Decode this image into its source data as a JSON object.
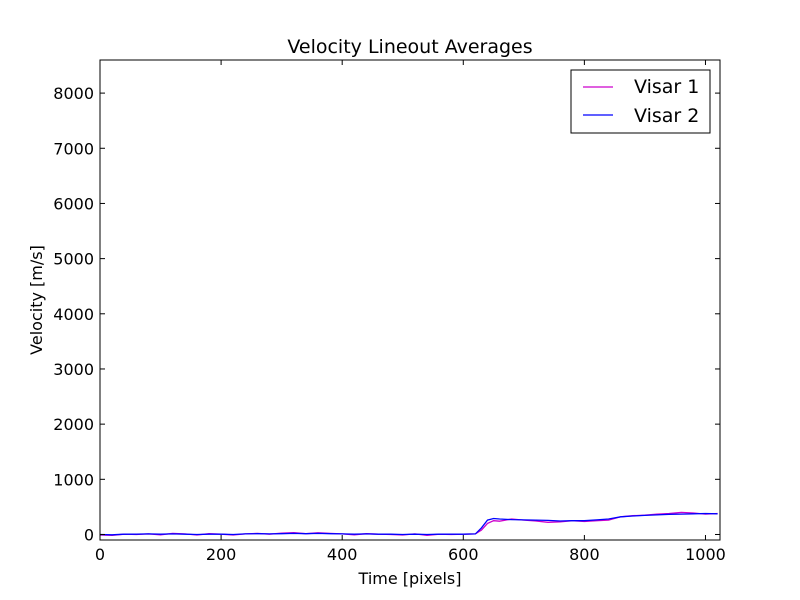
{
  "chart_data": {
    "type": "line",
    "title": "Velocity Lineout Averages",
    "xlabel": "Time [pixels]",
    "ylabel": "Velocity [m/s]",
    "xlim": [
      0,
      1024
    ],
    "ylim": [
      -100,
      8600
    ],
    "xticks": [
      0,
      200,
      400,
      600,
      800,
      1000
    ],
    "yticks": [
      0,
      1000,
      2000,
      3000,
      4000,
      5000,
      6000,
      7000,
      8000
    ],
    "grid": false,
    "legend_position": "top-right",
    "series": [
      {
        "name": "Visar 1",
        "color": "#cc00cc",
        "x": [
          0,
          20,
          40,
          60,
          80,
          100,
          120,
          140,
          160,
          180,
          200,
          220,
          240,
          260,
          280,
          300,
          320,
          340,
          360,
          380,
          400,
          420,
          440,
          460,
          480,
          500,
          520,
          540,
          560,
          580,
          600,
          620,
          630,
          640,
          650,
          660,
          680,
          700,
          720,
          740,
          760,
          780,
          800,
          820,
          840,
          860,
          880,
          900,
          920,
          940,
          960,
          980,
          1000,
          1020
        ],
        "values": [
          -10,
          -15,
          5,
          0,
          10,
          -5,
          20,
          10,
          -10,
          15,
          5,
          -10,
          10,
          20,
          5,
          25,
          35,
          15,
          30,
          20,
          10,
          -5,
          15,
          5,
          0,
          -10,
          10,
          -15,
          5,
          0,
          5,
          10,
          80,
          200,
          250,
          240,
          280,
          260,
          245,
          220,
          230,
          250,
          235,
          250,
          260,
          320,
          340,
          350,
          370,
          380,
          400,
          390,
          370,
          380
        ]
      },
      {
        "name": "Visar 2",
        "color": "#0000ff",
        "x": [
          0,
          20,
          40,
          60,
          80,
          100,
          120,
          140,
          160,
          180,
          200,
          220,
          240,
          260,
          280,
          300,
          320,
          340,
          360,
          380,
          400,
          420,
          440,
          460,
          480,
          500,
          520,
          540,
          560,
          580,
          600,
          620,
          630,
          640,
          650,
          660,
          680,
          700,
          720,
          740,
          760,
          780,
          800,
          820,
          840,
          860,
          880,
          900,
          920,
          940,
          960,
          980,
          1000,
          1020
        ],
        "values": [
          0,
          -5,
          5,
          5,
          10,
          5,
          10,
          5,
          0,
          5,
          5,
          0,
          10,
          15,
          10,
          15,
          20,
          15,
          20,
          15,
          10,
          5,
          10,
          5,
          5,
          0,
          5,
          0,
          5,
          5,
          5,
          10,
          120,
          260,
          290,
          280,
          270,
          265,
          260,
          255,
          245,
          250,
          250,
          265,
          280,
          320,
          335,
          345,
          355,
          365,
          370,
          375,
          380,
          375
        ]
      }
    ]
  }
}
